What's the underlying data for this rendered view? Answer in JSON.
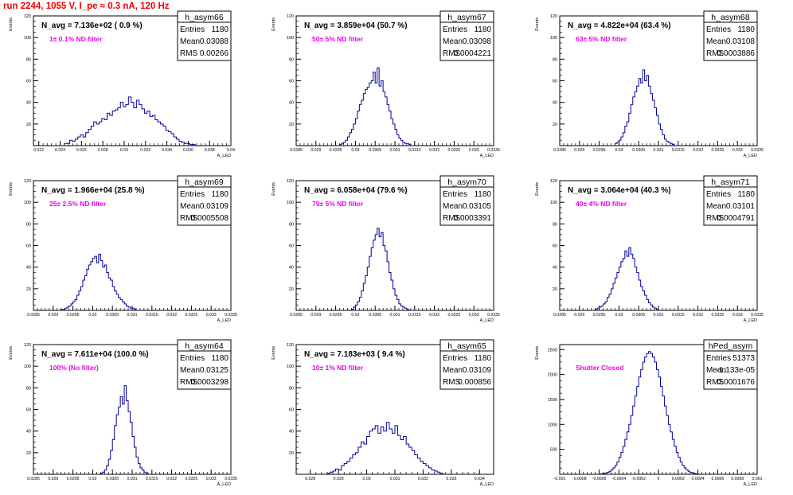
{
  "run_title": "run 2244,  1055 V, I_pe ≈ 0.3 nA, 120 Hz",
  "colors": {
    "title": "#ee0000",
    "annotation": "#ee00ee",
    "histogram": "#000099",
    "axes": "#000000"
  },
  "stat_labels": {
    "entries": "Entries",
    "mean": "Mean",
    "rms": "RMS"
  },
  "chart_data": [
    {
      "type": "histogram",
      "name": "h_asym66",
      "title": "N_avg = 7.136e+02 ( 0.9 %)",
      "annotation": "1± 0.1% ND filter",
      "stats": {
        "entries": "1180",
        "mean": "0.03088",
        "rms": "0.00266"
      },
      "ylabel": "Events",
      "xlabel": "A_LED",
      "xlim": [
        0.0215,
        0.04
      ],
      "ylim": [
        0,
        120
      ],
      "xticks": [
        "0.022",
        "0.024",
        "0.026",
        "0.028",
        "0.03",
        "0.032",
        "0.034",
        "0.036",
        "0.038",
        "0.04"
      ],
      "xtick_values": [
        0.022,
        0.024,
        0.026,
        0.028,
        0.03,
        0.032,
        0.034,
        0.036,
        0.038,
        0.04
      ],
      "yticks": [
        "20",
        "40",
        "60",
        "80",
        "100",
        "120"
      ],
      "ytick_values": [
        20,
        40,
        60,
        80,
        100,
        120
      ],
      "bins": {
        "start": 0.0244,
        "width": 0.00025,
        "counts": [
          2,
          2,
          5,
          4,
          6,
          8,
          10,
          8,
          12,
          15,
          18,
          22,
          20,
          22,
          25,
          24,
          30,
          28,
          32,
          33,
          35,
          40,
          36,
          38,
          45,
          40,
          35,
          42,
          38,
          34,
          30,
          32,
          27,
          28,
          24,
          22,
          20,
          18,
          14,
          13,
          11,
          8,
          6,
          4,
          3,
          2,
          2,
          1,
          1
        ]
      }
    },
    {
      "type": "histogram",
      "name": "h_asym67",
      "title": "N_avg = 3.859e+04 (50.7 %)",
      "annotation": "50± 5% ND filter",
      "stats": {
        "entries": "1180",
        "mean": "0.03098",
        "rms": "0.0004221"
      },
      "ylabel": "Events",
      "xlabel": "A_LED",
      "xlim": [
        0.0285,
        0.0335
      ],
      "ylim": [
        0,
        120
      ],
      "xticks": [
        "0.0285",
        "0.029",
        "0.0295",
        "0.03",
        "0.0305",
        "0.031",
        "0.0315",
        "0.032",
        "0.0325",
        "0.033",
        "0.0335"
      ],
      "xtick_values": [
        0.0285,
        0.029,
        0.0295,
        0.03,
        0.0305,
        0.031,
        0.0315,
        0.032,
        0.0325,
        0.033,
        0.0335
      ],
      "yticks": [
        "20",
        "40",
        "60",
        "80",
        "100",
        "120"
      ],
      "ytick_values": [
        20,
        40,
        60,
        80,
        100,
        120
      ],
      "bins": {
        "start": 0.0296,
        "width": 5e-05,
        "counts": [
          1,
          2,
          3,
          5,
          8,
          12,
          15,
          20,
          25,
          32,
          38,
          42,
          48,
          52,
          54,
          58,
          60,
          68,
          58,
          72,
          55,
          60,
          50,
          45,
          38,
          32,
          25,
          20,
          15,
          10,
          7,
          5,
          3,
          2,
          2,
          1
        ]
      }
    },
    {
      "type": "histogram",
      "name": "h_asym68",
      "title": "N_avg = 4.822e+04 (63.4 %)",
      "annotation": "63± 5% ND filter",
      "stats": {
        "entries": "1180",
        "mean": "0.03108",
        "rms": "0.0003886"
      },
      "ylabel": "Events",
      "xlabel": "A_LED",
      "xlim": [
        0.0285,
        0.0335
      ],
      "ylim": [
        0,
        120
      ],
      "xticks": [
        "0.0285",
        "0.029",
        "0.0295",
        "0.03",
        "0.0305",
        "0.031",
        "0.0315",
        "0.032",
        "0.0325",
        "0.033",
        "0.0335"
      ],
      "xtick_values": [
        0.0285,
        0.029,
        0.0295,
        0.03,
        0.0305,
        0.031,
        0.0315,
        0.032,
        0.0325,
        0.033,
        0.0335
      ],
      "yticks": [
        "20",
        "40",
        "60",
        "80",
        "100",
        "120"
      ],
      "ytick_values": [
        20,
        40,
        60,
        80,
        100,
        120
      ],
      "bins": {
        "start": 0.0299,
        "width": 5e-05,
        "counts": [
          2,
          3,
          5,
          8,
          12,
          18,
          22,
          30,
          38,
          45,
          50,
          55,
          62,
          58,
          70,
          60,
          65,
          55,
          48,
          42,
          35,
          28,
          20,
          15,
          10,
          6,
          4,
          3,
          2,
          1
        ]
      }
    },
    {
      "type": "histogram",
      "name": "h_asym69",
      "title": "N_avg = 1.966e+04 (25.8 %)",
      "annotation": "25± 2.5% ND filter",
      "stats": {
        "entries": "1180",
        "mean": "0.03109",
        "rms": "0.0005508"
      },
      "ylabel": "Events",
      "xlabel": "A_LED",
      "xlim": [
        0.0285,
        0.0335
      ],
      "ylim": [
        0,
        120
      ],
      "xticks": [
        "0.0285",
        "0.029",
        "0.0295",
        "0.03",
        "0.0305",
        "0.031",
        "0.0315",
        "0.032",
        "0.0325",
        "0.033",
        "0.0335"
      ],
      "xtick_values": [
        0.0285,
        0.029,
        0.0295,
        0.03,
        0.0305,
        0.031,
        0.0315,
        0.032,
        0.0325,
        0.033,
        0.0335
      ],
      "yticks": [
        "20",
        "40",
        "60",
        "80",
        "100",
        "120"
      ],
      "ytick_values": [
        20,
        40,
        60,
        80,
        100,
        120
      ],
      "bins": {
        "start": 0.0292,
        "width": 5e-05,
        "counts": [
          1,
          1,
          2,
          3,
          4,
          6,
          8,
          10,
          14,
          18,
          22,
          28,
          32,
          38,
          42,
          45,
          48,
          50,
          44,
          52,
          46,
          40,
          42,
          35,
          30,
          28,
          22,
          18,
          15,
          12,
          10,
          8,
          6,
          4,
          3,
          2,
          2,
          1
        ]
      }
    },
    {
      "type": "histogram",
      "name": "h_asym70",
      "title": "N_avg = 6.058e+04 (79.6 %)",
      "annotation": "79± 5% ND filter",
      "stats": {
        "entries": "1180",
        "mean": "0.03105",
        "rms": "0.0003391"
      },
      "ylabel": "Events",
      "xlabel": "A_LED",
      "xlim": [
        0.0285,
        0.0335
      ],
      "ylim": [
        0,
        120
      ],
      "xticks": [
        "0.0285",
        "0.029",
        "0.0295",
        "0.03",
        "0.0305",
        "0.031",
        "0.0315",
        "0.032",
        "0.0325",
        "0.033",
        "0.0335"
      ],
      "xtick_values": [
        0.0285,
        0.029,
        0.0295,
        0.03,
        0.0305,
        0.031,
        0.0315,
        0.032,
        0.0325,
        0.033,
        0.0335
      ],
      "yticks": [
        "20",
        "40",
        "60",
        "80",
        "100",
        "120"
      ],
      "ytick_values": [
        20,
        40,
        60,
        80,
        100,
        120
      ],
      "bins": {
        "start": 0.0299,
        "width": 5e-05,
        "counts": [
          1,
          3,
          5,
          8,
          12,
          18,
          25,
          32,
          40,
          50,
          58,
          65,
          70,
          76,
          68,
          72,
          60,
          55,
          45,
          35,
          28,
          20,
          14,
          10,
          6,
          4,
          3,
          2,
          1
        ]
      }
    },
    {
      "type": "histogram",
      "name": "h_asym71",
      "title": "N_avg = 3.064e+04 (40.3 %)",
      "annotation": "40± 4% ND filter",
      "stats": {
        "entries": "1180",
        "mean": "0.03101",
        "rms": "0.0004791"
      },
      "ylabel": "Events",
      "xlabel": "A_LED",
      "xlim": [
        0.0285,
        0.0335
      ],
      "ylim": [
        0,
        120
      ],
      "xticks": [
        "0.0285",
        "0.029",
        "0.0295",
        "0.03",
        "0.0305",
        "0.031",
        "0.0315",
        "0.032",
        "0.0325",
        "0.033",
        "0.0335"
      ],
      "xtick_values": [
        0.0285,
        0.029,
        0.0295,
        0.03,
        0.0305,
        0.031,
        0.0315,
        0.032,
        0.0325,
        0.033,
        0.0335
      ],
      "yticks": [
        "20",
        "40",
        "60",
        "80",
        "100",
        "120"
      ],
      "ytick_values": [
        20,
        40,
        60,
        80,
        100,
        120
      ],
      "bins": {
        "start": 0.0294,
        "width": 5e-05,
        "counts": [
          1,
          2,
          3,
          4,
          6,
          8,
          12,
          15,
          20,
          25,
          30,
          35,
          40,
          45,
          48,
          55,
          50,
          58,
          52,
          48,
          40,
          35,
          28,
          22,
          18,
          14,
          10,
          7,
          5,
          3,
          2,
          1
        ]
      }
    },
    {
      "type": "histogram",
      "name": "h_asym64",
      "title": "N_avg = 7.611e+04 (100.0 %)",
      "annotation": "100% (No filter)",
      "stats": {
        "entries": "1180",
        "mean": "0.03125",
        "rms": "0.0003298"
      },
      "ylabel": "Events",
      "xlabel": "A_LED",
      "xlim": [
        0.0285,
        0.0335
      ],
      "ylim": [
        0,
        120
      ],
      "xticks": [
        "0.0285",
        "0.029",
        "0.0295",
        "0.03",
        "0.0305",
        "0.031",
        "0.0315",
        "0.032",
        "0.0325",
        "0.033",
        "0.0335"
      ],
      "xtick_values": [
        0.0285,
        0.029,
        0.0295,
        0.03,
        0.0305,
        0.031,
        0.0315,
        0.032,
        0.0325,
        0.033,
        0.0335
      ],
      "yticks": [
        "20",
        "40",
        "60",
        "80",
        "100",
        "120"
      ],
      "ytick_values": [
        20,
        40,
        60,
        80,
        100,
        120
      ],
      "bins": {
        "start": 0.0302,
        "width": 5e-05,
        "counts": [
          1,
          2,
          4,
          8,
          14,
          22,
          32,
          45,
          55,
          62,
          72,
          65,
          82,
          68,
          58,
          48,
          35,
          25,
          16,
          10,
          6,
          4,
          2,
          1
        ]
      }
    },
    {
      "type": "histogram",
      "name": "h_asym65",
      "title": "N_avg = 7.183e+03 ( 9.4 %)",
      "annotation": "10± 1% ND filter",
      "stats": {
        "entries": "1180",
        "mean": "0.03109",
        "rms": "0.000856"
      },
      "ylabel": "Events",
      "xlabel": "A_LED",
      "xlim": [
        0.0275,
        0.0345
      ],
      "ylim": [
        0,
        120
      ],
      "xticks": [
        "0.028",
        "0.029",
        "0.03",
        "0.031",
        "0.032",
        "0.033",
        "0.034"
      ],
      "xtick_values": [
        0.028,
        0.029,
        0.03,
        0.031,
        0.032,
        0.033,
        0.034
      ],
      "yticks": [
        "20",
        "40",
        "60",
        "80",
        "100",
        "120"
      ],
      "ytick_values": [
        20,
        40,
        60,
        80,
        100,
        120
      ],
      "bins": {
        "start": 0.0286,
        "width": 0.0001,
        "counts": [
          1,
          2,
          3,
          5,
          4,
          8,
          10,
          12,
          15,
          18,
          20,
          25,
          30,
          28,
          35,
          40,
          42,
          45,
          38,
          44,
          40,
          48,
          42,
          38,
          45,
          36,
          32,
          35,
          28,
          25,
          22,
          18,
          15,
          12,
          10,
          8,
          6,
          4,
          3,
          2,
          1
        ]
      }
    },
    {
      "type": "histogram",
      "name": "hPed_asym",
      "title": "",
      "annotation": "Shutter Closed",
      "stats": {
        "entries": "51373",
        "mean": "-1.133e-05",
        "rms": "0.0001676"
      },
      "ylabel": "Events",
      "xlabel": "A_LED",
      "xlim": [
        -0.001,
        0.001
      ],
      "ylim": [
        0,
        2600
      ],
      "xticks": [
        "-0.001",
        "-0.0008",
        "-0.0006",
        "-0.0004",
        "-0.0002",
        "0",
        "0.0002",
        "0.0004",
        "0.0006",
        "0.0008",
        "0.001"
      ],
      "xtick_values": [
        -0.001,
        -0.0008,
        -0.0006,
        -0.0004,
        -0.0002,
        0,
        0.0002,
        0.0004,
        0.0006,
        0.0008,
        0.001
      ],
      "yticks": [
        "500",
        "1000",
        "1500",
        "2000",
        "2500"
      ],
      "ytick_values": [
        500,
        1000,
        1500,
        2000,
        2500
      ],
      "bins": {
        "start": -0.0006,
        "width": 2e-05,
        "counts": [
          5,
          10,
          15,
          25,
          40,
          60,
          90,
          130,
          180,
          250,
          340,
          440,
          560,
          700,
          850,
          1000,
          1180,
          1370,
          1570,
          1760,
          1950,
          2100,
          2250,
          2350,
          2420,
          2460,
          2420,
          2350,
          2250,
          2100,
          1950,
          1760,
          1570,
          1370,
          1180,
          1000,
          850,
          700,
          560,
          440,
          340,
          250,
          180,
          130,
          90,
          60,
          40,
          25,
          15,
          10,
          5
        ]
      }
    }
  ]
}
